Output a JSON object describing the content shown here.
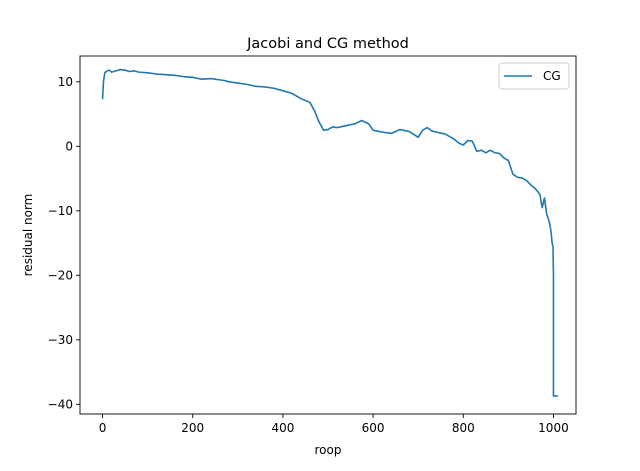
{
  "chart_data": {
    "type": "line",
    "title": "Jacobi and CG method",
    "xlabel": "roop",
    "ylabel": "residual norm",
    "xlim": [
      -50,
      1050
    ],
    "ylim": [
      -41.5,
      14.0
    ],
    "xticks": [
      0,
      200,
      400,
      600,
      800,
      1000
    ],
    "yticks": [
      -40,
      -30,
      -20,
      -10,
      0,
      10
    ],
    "xtick_labels": [
      "0",
      "200",
      "400",
      "600",
      "800",
      "1000"
    ],
    "ytick_labels": [
      "−40",
      "−30",
      "−20",
      "−10",
      "0",
      "10"
    ],
    "grid": false,
    "legend": {
      "position": "top-right",
      "entries": [
        "CG"
      ]
    },
    "series": [
      {
        "name": "CG",
        "color": "#1f77b4",
        "x": [
          0,
          2,
          5,
          10,
          15,
          20,
          25,
          30,
          40,
          50,
          60,
          70,
          80,
          100,
          120,
          140,
          160,
          180,
          200,
          220,
          240,
          260,
          270,
          280,
          300,
          320,
          340,
          360,
          380,
          400,
          420,
          440,
          460,
          470,
          480,
          490,
          500,
          510,
          520,
          540,
          560,
          575,
          590,
          600,
          620,
          640,
          660,
          680,
          700,
          710,
          720,
          730,
          740,
          760,
          780,
          790,
          800,
          810,
          820,
          830,
          840,
          850,
          860,
          870,
          880,
          890,
          900,
          910,
          920,
          930,
          940,
          950,
          960,
          965,
          970,
          975,
          980,
          985,
          990,
          993,
          995,
          997,
          999,
          1000,
          1000,
          1010
        ],
        "y": [
          7.3,
          10.0,
          11.4,
          11.7,
          11.8,
          11.5,
          11.6,
          11.7,
          11.9,
          11.8,
          11.6,
          11.7,
          11.5,
          11.4,
          11.2,
          11.1,
          11.0,
          10.8,
          10.7,
          10.4,
          10.5,
          10.3,
          10.2,
          10.0,
          9.8,
          9.6,
          9.3,
          9.2,
          9.0,
          8.6,
          8.2,
          7.4,
          6.8,
          5.5,
          3.8,
          2.5,
          2.6,
          3.0,
          2.9,
          3.2,
          3.5,
          4.0,
          3.5,
          2.5,
          2.2,
          2.0,
          2.6,
          2.3,
          1.4,
          2.5,
          2.9,
          2.4,
          2.2,
          1.9,
          1.1,
          0.5,
          0.2,
          0.9,
          0.8,
          -0.8,
          -0.6,
          -1.0,
          -0.6,
          -1.0,
          -1.1,
          -1.8,
          -2.2,
          -4.3,
          -4.8,
          -4.9,
          -5.3,
          -6.0,
          -6.6,
          -7.0,
          -7.5,
          -9.5,
          -8.0,
          -10.5,
          -11.5,
          -12.5,
          -13.5,
          -15.0,
          -15.5,
          -20.0,
          -38.7,
          -38.7
        ]
      }
    ]
  }
}
